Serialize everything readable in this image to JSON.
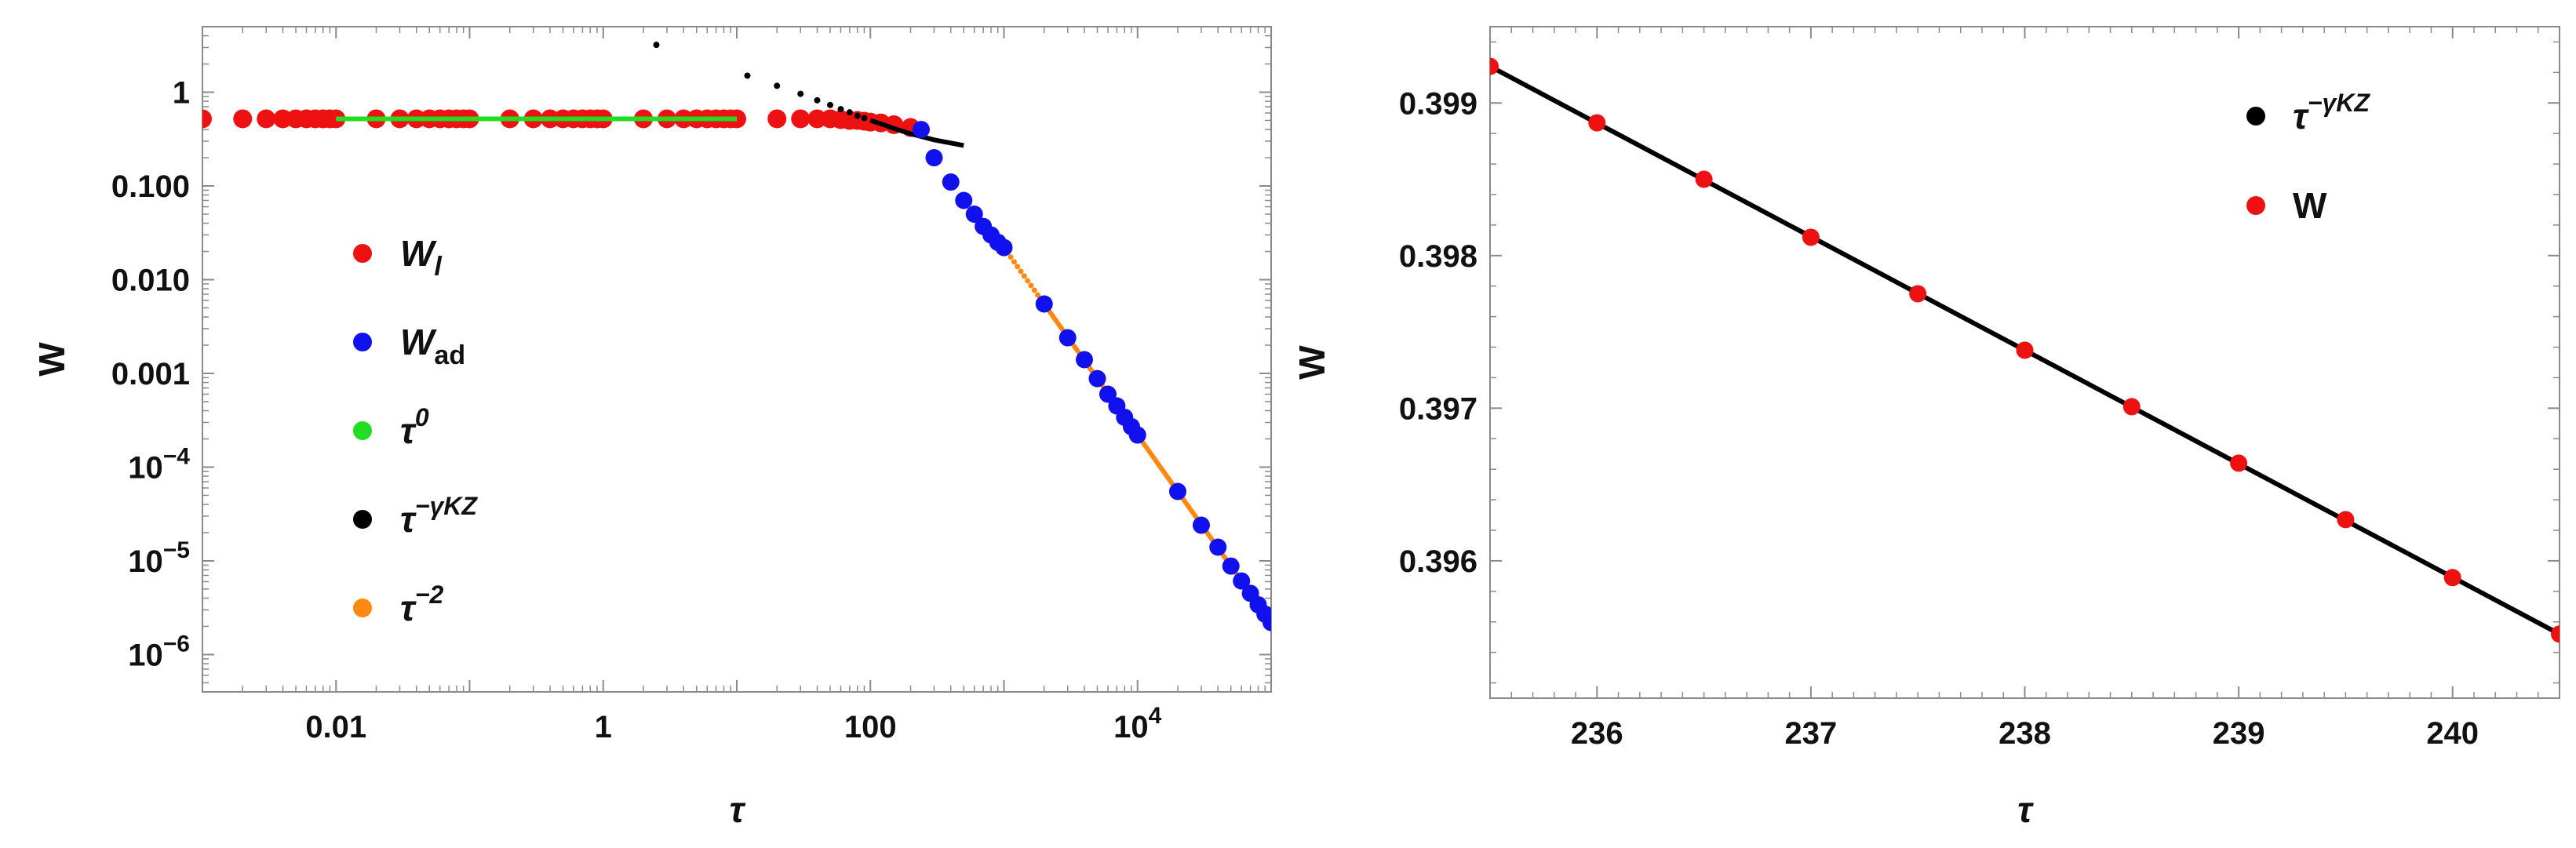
{
  "chart_data": [
    {
      "type": "scatter",
      "xlabel": "τ",
      "ylabel": "W",
      "xscale": "log",
      "yscale": "log",
      "xlim": [
        0.001,
        100000
      ],
      "ylim": [
        4e-07,
        5
      ],
      "grid": false,
      "legend_position": "center-left",
      "x_ticks": [
        {
          "value": 0.01,
          "label": "0.01",
          "sup": ""
        },
        {
          "value": 1,
          "label": "1",
          "sup": ""
        },
        {
          "value": 100,
          "label": "100",
          "sup": ""
        },
        {
          "value": 10000,
          "label": "10",
          "sup": "4"
        }
      ],
      "y_ticks": [
        {
          "value": 1,
          "label": "1",
          "sup": ""
        },
        {
          "value": 0.1,
          "label": "0.100",
          "sup": ""
        },
        {
          "value": 0.01,
          "label": "0.010",
          "sup": ""
        },
        {
          "value": 0.001,
          "label": "0.001",
          "sup": ""
        },
        {
          "value": 0.0001,
          "label": "10",
          "sup": "−4"
        },
        {
          "value": 1e-05,
          "label": "10",
          "sup": "−5"
        },
        {
          "value": 1e-06,
          "label": "10",
          "sup": "−6"
        }
      ],
      "legend": [
        {
          "label": "W",
          "sub": "l",
          "sup": "",
          "color": "#ee1111"
        },
        {
          "label": "W",
          "sub": "ad",
          "sup": "",
          "color": "#1111ee"
        },
        {
          "label": "τ",
          "sub": "",
          "sup": "0",
          "color": "#22dd22"
        },
        {
          "label": "τ",
          "sub": "",
          "sup": "−γKZ",
          "color": "#000000"
        },
        {
          "label": "τ",
          "sub": "",
          "sup": "−2",
          "color": "#ff8811"
        }
      ],
      "series": [
        {
          "name": "W_l",
          "color": "#ee1111",
          "x": [
            0.001,
            0.002,
            0.003,
            0.004,
            0.005,
            0.006,
            0.007,
            0.008,
            0.009,
            0.01,
            0.02,
            0.03,
            0.04,
            0.05,
            0.06,
            0.07,
            0.08,
            0.09,
            0.1,
            0.2,
            0.3,
            0.4,
            0.5,
            0.6,
            0.7,
            0.8,
            0.9,
            1,
            2,
            3,
            4,
            5,
            6,
            7,
            8,
            9,
            10,
            20,
            30,
            40,
            50,
            60,
            70,
            80,
            90,
            100,
            120,
            150,
            200
          ],
          "y": [
            0.52,
            0.52,
            0.52,
            0.52,
            0.52,
            0.52,
            0.52,
            0.52,
            0.52,
            0.52,
            0.52,
            0.52,
            0.52,
            0.52,
            0.52,
            0.52,
            0.52,
            0.52,
            0.52,
            0.52,
            0.52,
            0.52,
            0.52,
            0.52,
            0.52,
            0.52,
            0.52,
            0.52,
            0.52,
            0.52,
            0.52,
            0.52,
            0.52,
            0.52,
            0.52,
            0.52,
            0.52,
            0.52,
            0.52,
            0.52,
            0.52,
            0.51,
            0.5,
            0.5,
            0.49,
            0.48,
            0.47,
            0.45,
            0.42
          ]
        },
        {
          "name": "W_ad",
          "color": "#1111ee",
          "x": [
            240,
            300,
            400,
            500,
            600,
            700,
            800,
            900,
            1000,
            2000,
            3000,
            4000,
            5000,
            6000,
            7000,
            8000,
            9000,
            10000,
            20000,
            30000,
            40000,
            50000,
            60000,
            70000,
            80000,
            90000,
            100000
          ],
          "y": [
            0.4,
            0.2,
            0.11,
            0.07,
            0.05,
            0.037,
            0.03,
            0.025,
            0.022,
            0.0055,
            0.0024,
            0.0014,
            0.00088,
            0.0006,
            0.00045,
            0.00034,
            0.00027,
            0.00022,
            5.5e-05,
            2.4e-05,
            1.4e-05,
            8.8e-06,
            6.1e-06,
            4.5e-06,
            3.4e-06,
            2.7e-06,
            2.2e-06
          ]
        },
        {
          "name": "τ^0",
          "color": "#22dd22",
          "x": [
            0.01,
            10
          ],
          "y": [
            0.52,
            0.52
          ]
        },
        {
          "name": "τ^-γKZ",
          "color": "#000000",
          "x": [
            2.5,
            12,
            20,
            30,
            40,
            50,
            60,
            70,
            80,
            90,
            100,
            120,
            150,
            200,
            300,
            500
          ],
          "y": [
            3.2,
            1.5,
            1.17,
            0.96,
            0.82,
            0.73,
            0.66,
            0.61,
            0.56,
            0.53,
            0.5,
            0.46,
            0.41,
            0.36,
            0.31,
            0.27
          ]
        },
        {
          "name": "τ^-2",
          "color": "#ff8811",
          "x": [
            1000,
            100000
          ],
          "y": [
            0.022,
            2.2e-06
          ]
        }
      ]
    },
    {
      "type": "line",
      "xlabel": "τ",
      "ylabel": "W",
      "xlim": [
        235.5,
        240.5
      ],
      "ylim": [
        0.3951,
        0.3995
      ],
      "grid": false,
      "legend_position": "top-right",
      "x_ticks": [
        236,
        237,
        238,
        239,
        240
      ],
      "y_ticks": [
        0.396,
        0.397,
        0.398,
        0.399
      ],
      "y_tick_labels": [
        "0.396",
        "0.397",
        "0.398",
        "0.399"
      ],
      "legend": [
        {
          "label": "τ",
          "sub": "",
          "sup": "−γKZ",
          "color": "#000000"
        },
        {
          "label": "W",
          "sub": "",
          "sup": "",
          "color": "#ee1111"
        }
      ],
      "series": [
        {
          "name": "τ^-γKZ",
          "color": "#000000",
          "x": [
            235.5,
            240.5
          ],
          "y": [
            0.39924,
            0.39552
          ]
        },
        {
          "name": "W",
          "color": "#ee1111",
          "x": [
            235.5,
            236,
            236.5,
            237,
            237.5,
            238,
            238.5,
            239,
            239.5,
            240,
            240.5
          ],
          "y": [
            0.39924,
            0.39887,
            0.3985,
            0.39812,
            0.39775,
            0.39738,
            0.39701,
            0.39664,
            0.39627,
            0.39589,
            0.39552
          ]
        }
      ]
    }
  ]
}
